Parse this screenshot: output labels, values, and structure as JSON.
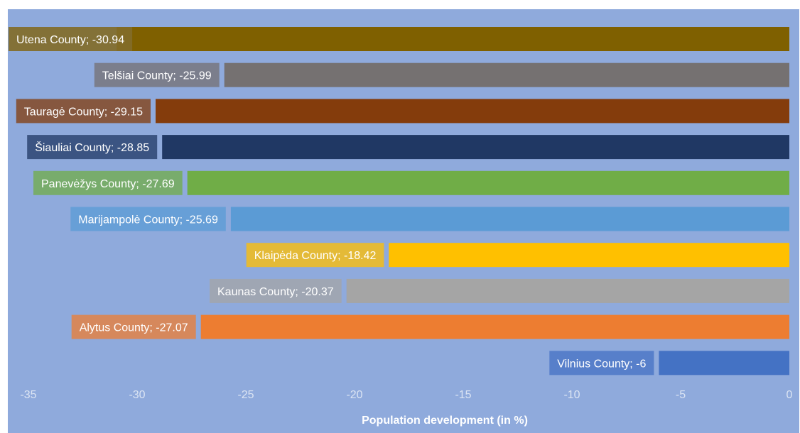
{
  "chart_data": {
    "type": "bar",
    "orientation": "horizontal",
    "xlabel": "Population development (in %)",
    "xlim": [
      -35,
      0
    ],
    "x_ticks": [
      -35,
      -30,
      -25,
      -20,
      -15,
      -10,
      -5,
      0
    ],
    "grid": false,
    "legend": "none",
    "bars": [
      {
        "category": "Utena County",
        "value": -30.94,
        "label": "Utena County; -30.94",
        "color": "#7f6000"
      },
      {
        "category": "Telšiai County",
        "value": -25.99,
        "label": "Telšiai County; -25.99",
        "color": "#757171"
      },
      {
        "category": "Tauragė County",
        "value": -29.15,
        "label": "Tauragė County; -29.15",
        "color": "#843c0c"
      },
      {
        "category": "Šiauliai County",
        "value": -28.85,
        "label": "Šiauliai County; -28.85",
        "color": "#203864"
      },
      {
        "category": "Panevėžys County",
        "value": -27.69,
        "label": "Panevėžys County; -27.69",
        "color": "#70ad47"
      },
      {
        "category": "Marijampolė County",
        "value": -25.69,
        "label": "Marijampolė County; -25.69",
        "color": "#5b9bd5"
      },
      {
        "category": "Klaipėda County",
        "value": -18.42,
        "label": "Klaipėda County; -18.42",
        "color": "#ffc000"
      },
      {
        "category": "Kaunas County",
        "value": -20.37,
        "label": "Kaunas County; -20.37",
        "color": "#a5a5a5"
      },
      {
        "category": "Alytus County",
        "value": -27.07,
        "label": "Alytus County; -27.07",
        "color": "#ed7d31"
      },
      {
        "category": "Vilnius County",
        "value": -6,
        "label": "Vilnius County; -6",
        "color": "#4472c4"
      }
    ]
  },
  "colors": {
    "plot_background": "#8faadc",
    "tick_label": "#dbe4f3",
    "axis_title": "#ffffff",
    "data_label_text": "#ffffff"
  }
}
